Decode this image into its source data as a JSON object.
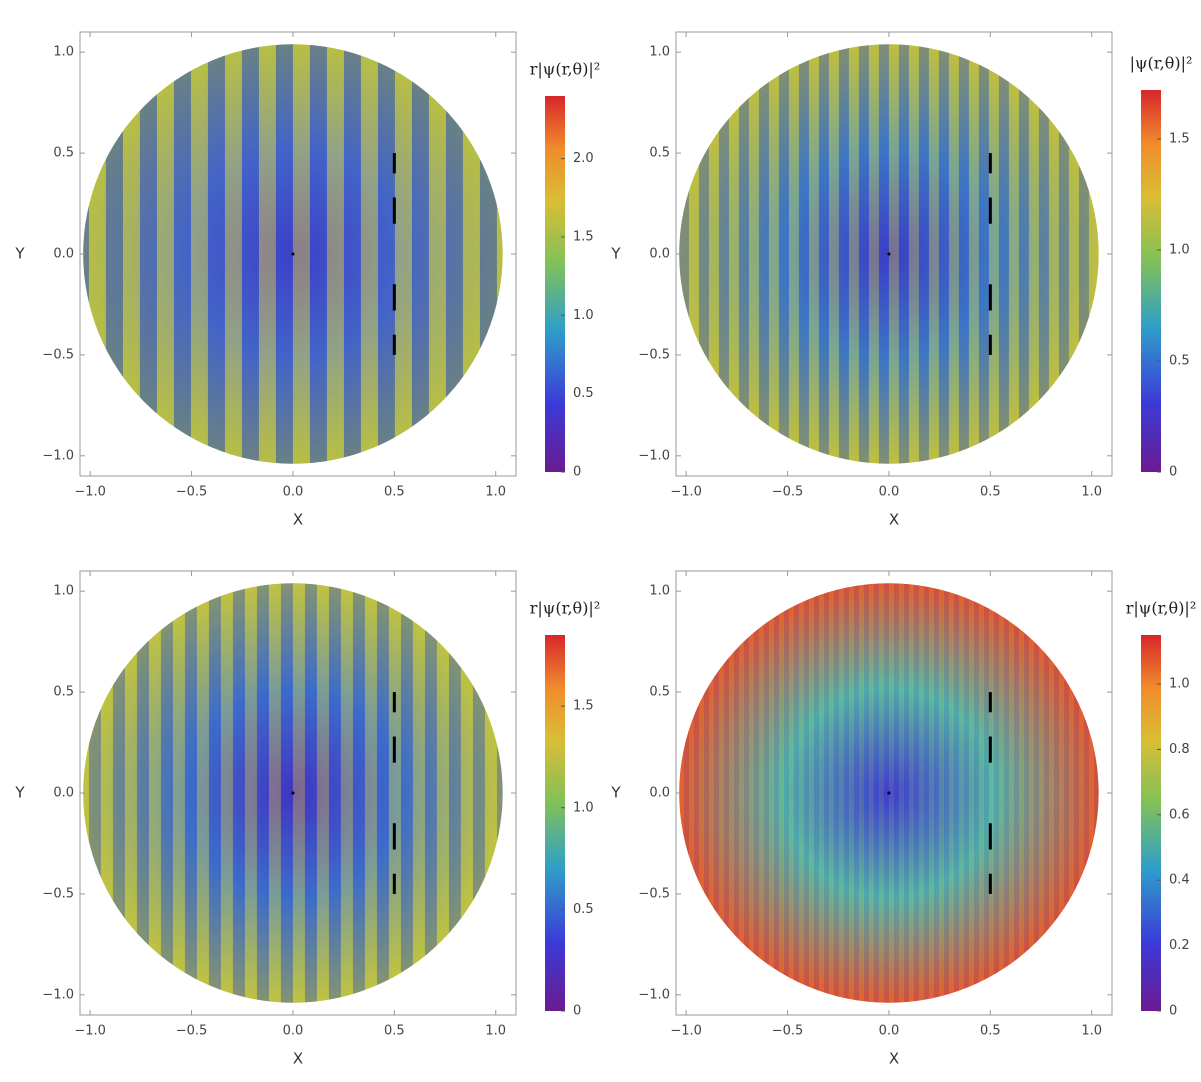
{
  "chart_data": [
    {
      "type": "density",
      "x_label": "X",
      "y_label": "Y",
      "xlim": [
        -1.05,
        1.1
      ],
      "ylim": [
        -1.1,
        1.1
      ],
      "xticks": [
        {
          "value": -1,
          "label": "−1.0"
        },
        {
          "value": -0.5,
          "label": "−0.5"
        },
        {
          "value": 0,
          "label": "0.0"
        },
        0.5,
        {
          "value": 1,
          "label": "1.0"
        }
      ],
      "yticks": [
        {
          "value": -1,
          "label": "−1.0"
        },
        {
          "value": -0.5,
          "label": "−0.5"
        },
        {
          "value": 0,
          "label": "0.0"
        },
        0.5,
        {
          "value": 1,
          "label": "1.0"
        }
      ],
      "colorbar_label": "r|ψ(r,θ)|²",
      "colorbar_lim": [
        0,
        2.4
      ],
      "colorbar_ticks": [
        0,
        0.5,
        {
          "value": 1,
          "label": "1.0"
        },
        1.5,
        {
          "value": 2,
          "label": "2.0"
        }
      ]
    },
    {
      "type": "density",
      "x_label": "X",
      "y_label": "Y",
      "xlim": [
        -1.05,
        1.1
      ],
      "ylim": [
        -1.1,
        1.1
      ],
      "xticks": [
        {
          "value": -1,
          "label": "−1.0"
        },
        {
          "value": -0.5,
          "label": "−0.5"
        },
        {
          "value": 0,
          "label": "0.0"
        },
        0.5,
        {
          "value": 1,
          "label": "1.0"
        }
      ],
      "yticks": [
        {
          "value": -1,
          "label": "−1.0"
        },
        {
          "value": -0.5,
          "label": "−0.5"
        },
        {
          "value": 0,
          "label": "0.0"
        },
        0.5,
        {
          "value": 1,
          "label": "1.0"
        }
      ],
      "colorbar_label": "|ψ(r,θ)|²",
      "colorbar_lim": [
        0,
        1.72
      ],
      "colorbar_ticks": [
        0,
        0.5,
        {
          "value": 1,
          "label": "1.0"
        },
        1.5
      ]
    },
    {
      "type": "density",
      "x_label": "X",
      "y_label": "Y",
      "xlim": [
        -1.05,
        1.1
      ],
      "ylim": [
        -1.1,
        1.1
      ],
      "xticks": [
        {
          "value": -1,
          "label": "−1.0"
        },
        {
          "value": -0.5,
          "label": "−0.5"
        },
        {
          "value": 0,
          "label": "0.0"
        },
        0.5,
        {
          "value": 1,
          "label": "1.0"
        }
      ],
      "yticks": [
        {
          "value": -1,
          "label": "−1.0"
        },
        {
          "value": -0.5,
          "label": "−0.5"
        },
        {
          "value": 0,
          "label": "0.0"
        },
        0.5,
        {
          "value": 1,
          "label": "1.0"
        }
      ],
      "colorbar_label": "r|ψ(r,θ)|²",
      "colorbar_lim": [
        0,
        1.85
      ],
      "colorbar_ticks": [
        0,
        0.5,
        {
          "value": 1,
          "label": "1.0"
        },
        1.5
      ]
    },
    {
      "type": "density",
      "x_label": "X",
      "y_label": "Y",
      "xlim": [
        -1.05,
        1.1
      ],
      "ylim": [
        -1.1,
        1.1
      ],
      "xticks": [
        {
          "value": -1,
          "label": "−1.0"
        },
        {
          "value": -0.5,
          "label": "−0.5"
        },
        {
          "value": 0,
          "label": "0.0"
        },
        0.5,
        {
          "value": 1,
          "label": "1.0"
        }
      ],
      "yticks": [
        {
          "value": -1,
          "label": "−1.0"
        },
        {
          "value": -0.5,
          "label": "−0.5"
        },
        {
          "value": 0,
          "label": "0.0"
        },
        0.5,
        {
          "value": 1,
          "label": "1.0"
        }
      ],
      "colorbar_label": "r|ψ(r,θ)|²",
      "colorbar_lim": [
        0,
        1.15
      ],
      "colorbar_ticks": [
        0,
        0.2,
        0.4,
        0.6,
        0.8,
        {
          "value": 1,
          "label": "1.0"
        }
      ]
    }
  ]
}
